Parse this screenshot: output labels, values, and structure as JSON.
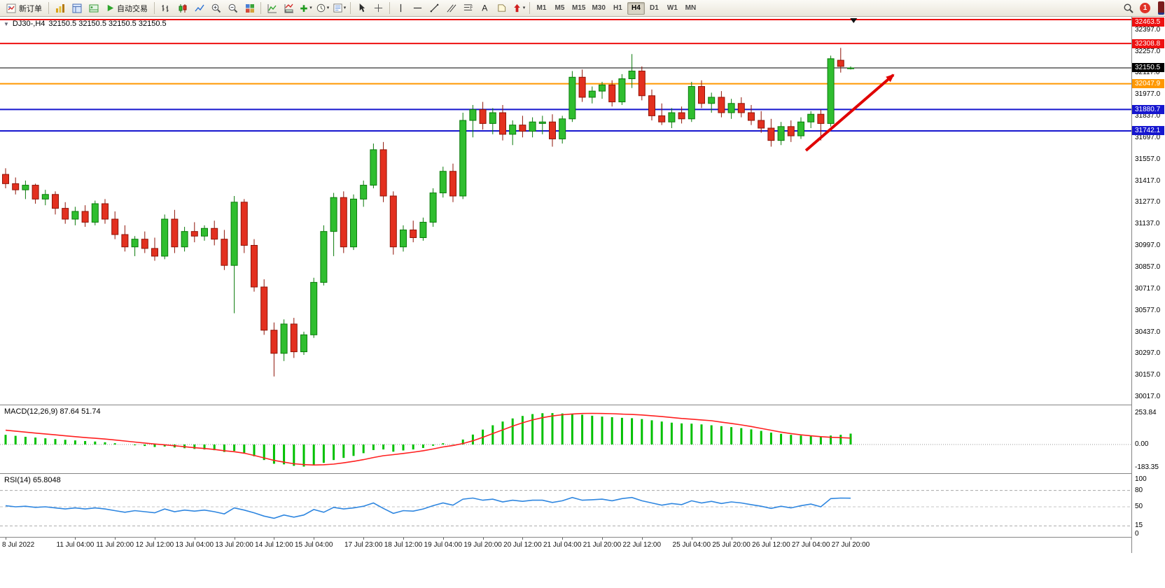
{
  "toolbar": {
    "new_order_label": "新订单",
    "autotrade_label": "自动交易",
    "timeframes": [
      "M1",
      "M5",
      "M15",
      "M30",
      "H1",
      "H4",
      "D1",
      "W1",
      "MN"
    ],
    "active_timeframe": "H4",
    "notification_count": "1"
  },
  "icons": {
    "new_order": "order-ticket",
    "market_watch": "gold-bars",
    "navigator": "window-panel",
    "terminal": "panel-green",
    "autotrade": "play-triangle",
    "chart_bars": "ohlc-bars",
    "chart_candles": "candlesticks",
    "chart_line": "zigzag-line",
    "zoom_in": "magnifier-plus",
    "zoom_out": "magnifier-minus",
    "tile_windows": "colored-grid",
    "indicators": "chart-curve",
    "indicator_windows": "chart-subpanel",
    "add_indicator": "green-plus",
    "periods": "clock",
    "templates": "document-lines",
    "cursor": "pointer-arrow",
    "crosshair": "cross",
    "vertical_line": "vline",
    "horizontal_line": "hline",
    "trendline": "diagonal",
    "channel": "parallel-diagonals",
    "fibonacci": "fibo-lines",
    "text": "letter-A",
    "label": "tag",
    "arrows": "red-arrow",
    "search": "magnifier",
    "chart_menu": "down-triangle",
    "series_end": "black-down-triangle"
  },
  "chart_data": {
    "type": "candlestick",
    "symbol_period": "DJ30-,H4",
    "ohlc_display": "32150.5 32150.5 32150.5 32150.5",
    "style": {
      "bull_fill": "#2fbe2f",
      "bull_stroke": "#0b7a0b",
      "bear_fill": "#e3301f",
      "bear_stroke": "#8f1408"
    },
    "price_axis": {
      "max": 32463.5,
      "min": 30013.0,
      "plain_ticks": [
        32397.0,
        32257.0,
        32117.0,
        31977.0,
        31837.0,
        31697.0,
        31557.0,
        31417.0,
        31277.0,
        31137.0,
        30997.0,
        30857.0,
        30717.0,
        30577.0,
        30437.0,
        30297.0,
        30157.0,
        30017.0
      ],
      "tagged": [
        {
          "price": 32463.5,
          "color": "#ee1111"
        },
        {
          "price": 32308.8,
          "color": "#ee1111"
        },
        {
          "price": 32150.5,
          "color": "#000000"
        },
        {
          "price": 32047.9,
          "color": "#ff9800"
        },
        {
          "price": 31880.7,
          "color": "#1616cf"
        },
        {
          "price": 31742.1,
          "color": "#1616cf"
        }
      ]
    },
    "hlines": [
      {
        "price": 32463.5,
        "color": "#ee1111",
        "width": 2
      },
      {
        "price": 32308.8,
        "color": "#ee1111",
        "width": 2
      },
      {
        "price": 32150.5,
        "color": "#000000",
        "width": 1
      },
      {
        "price": 32047.9,
        "color": "#ff9800",
        "width": 2
      },
      {
        "price": 31880.7,
        "color": "#1616cf",
        "width": 2
      },
      {
        "price": 31742.1,
        "color": "#1616cf",
        "width": 2
      }
    ],
    "candles": [
      [
        31460,
        31500,
        31370,
        31400
      ],
      [
        31400,
        31440,
        31330,
        31360
      ],
      [
        31360,
        31420,
        31300,
        31390
      ],
      [
        31390,
        31400,
        31270,
        31300
      ],
      [
        31300,
        31360,
        31260,
        31330
      ],
      [
        31330,
        31350,
        31200,
        31240
      ],
      [
        31240,
        31280,
        31140,
        31170
      ],
      [
        31170,
        31250,
        31130,
        31220
      ],
      [
        31220,
        31260,
        31120,
        31150
      ],
      [
        31150,
        31290,
        31130,
        31270
      ],
      [
        31270,
        31300,
        31140,
        31170
      ],
      [
        31170,
        31220,
        31040,
        31070
      ],
      [
        31070,
        31130,
        30960,
        30990
      ],
      [
        30990,
        31060,
        30930,
        31040
      ],
      [
        31040,
        31090,
        30950,
        30980
      ],
      [
        30980,
        31050,
        30900,
        30930
      ],
      [
        30930,
        31200,
        30910,
        31170
      ],
      [
        31170,
        31230,
        30950,
        30990
      ],
      [
        30990,
        31120,
        30960,
        31090
      ],
      [
        31090,
        31150,
        31020,
        31060
      ],
      [
        31060,
        31130,
        31030,
        31110
      ],
      [
        31110,
        31160,
        31000,
        31040
      ],
      [
        31040,
        31100,
        30840,
        30870
      ],
      [
        30870,
        31320,
        30560,
        31280
      ],
      [
        31280,
        31300,
        30950,
        31000
      ],
      [
        31000,
        31040,
        30700,
        30730
      ],
      [
        30730,
        30780,
        30420,
        30450
      ],
      [
        30450,
        30500,
        30150,
        30300
      ],
      [
        30300,
        30520,
        30250,
        30490
      ],
      [
        30490,
        30530,
        30270,
        30310
      ],
      [
        30310,
        30440,
        30290,
        30420
      ],
      [
        30420,
        30790,
        30400,
        30760
      ],
      [
        30760,
        31130,
        30740,
        31090
      ],
      [
        31090,
        31340,
        30930,
        31310
      ],
      [
        31310,
        31350,
        30950,
        30990
      ],
      [
        30990,
        31330,
        30970,
        31300
      ],
      [
        31300,
        31420,
        31250,
        31390
      ],
      [
        31390,
        31660,
        31370,
        31620
      ],
      [
        31620,
        31670,
        31280,
        31320
      ],
      [
        31320,
        31350,
        30940,
        30990
      ],
      [
        30990,
        31130,
        30960,
        31100
      ],
      [
        31100,
        31160,
        31020,
        31050
      ],
      [
        31050,
        31180,
        31030,
        31150
      ],
      [
        31150,
        31370,
        31120,
        31340
      ],
      [
        31340,
        31510,
        31310,
        31480
      ],
      [
        31480,
        31530,
        31280,
        31320
      ],
      [
        31320,
        31860,
        31300,
        31810
      ],
      [
        31810,
        31910,
        31700,
        31880
      ],
      [
        31880,
        31930,
        31750,
        31790
      ],
      [
        31790,
        31890,
        31720,
        31860
      ],
      [
        31860,
        31910,
        31680,
        31720
      ],
      [
        31720,
        31810,
        31650,
        31780
      ],
      [
        31780,
        31840,
        31700,
        31740
      ],
      [
        31740,
        31830,
        31700,
        31800
      ],
      [
        31790,
        31840,
        31720,
        31800
      ],
      [
        31800,
        31850,
        31640,
        31690
      ],
      [
        31690,
        31840,
        31660,
        31820
      ],
      [
        31820,
        32130,
        31800,
        32090
      ],
      [
        32090,
        32140,
        31930,
        31960
      ],
      [
        31960,
        32030,
        31920,
        32000
      ],
      [
        32000,
        32060,
        31950,
        32040
      ],
      [
        32040,
        32070,
        31900,
        31930
      ],
      [
        31930,
        32110,
        31910,
        32080
      ],
      [
        32080,
        32240,
        32020,
        32130
      ],
      [
        32130,
        32160,
        31940,
        31970
      ],
      [
        31970,
        32010,
        31810,
        31840
      ],
      [
        31840,
        31920,
        31780,
        31800
      ],
      [
        31800,
        31890,
        31760,
        31860
      ],
      [
        31860,
        31900,
        31790,
        31820
      ],
      [
        31820,
        32060,
        31800,
        32030
      ],
      [
        32030,
        32070,
        31890,
        31920
      ],
      [
        31920,
        31990,
        31860,
        31960
      ],
      [
        31960,
        32000,
        31830,
        31860
      ],
      [
        31860,
        31950,
        31820,
        31920
      ],
      [
        31920,
        31960,
        31830,
        31860
      ],
      [
        31860,
        31910,
        31780,
        31810
      ],
      [
        31810,
        31870,
        31730,
        31760
      ],
      [
        31760,
        31820,
        31640,
        31680
      ],
      [
        31680,
        31800,
        31650,
        31770
      ],
      [
        31770,
        31810,
        31670,
        31710
      ],
      [
        31710,
        31830,
        31690,
        31800
      ],
      [
        31800,
        31870,
        31760,
        31850
      ],
      [
        31850,
        31880,
        31680,
        31790
      ],
      [
        31790,
        32230,
        31770,
        32210
      ],
      [
        32200,
        32280,
        32120,
        32160
      ],
      [
        32150.5,
        32160,
        32140,
        32150.5
      ]
    ],
    "indicators": {
      "macd": {
        "label": "MACD(12,26,9)",
        "values_text": "87.64 51.74",
        "scale_max": 253.84,
        "scale_min": -183.35,
        "scale_labels": [
          "253.84",
          "0.00",
          "-183.35"
        ],
        "histogram_color": "#00c000",
        "signal_color": "#ff2020",
        "histogram": [
          78,
          70,
          62,
          56,
          50,
          44,
          38,
          33,
          28,
          24,
          18,
          10,
          0,
          -6,
          -12,
          -20,
          -16,
          -24,
          -30,
          -36,
          -40,
          -46,
          -60,
          -52,
          -68,
          -95,
          -125,
          -155,
          -160,
          -172,
          -178,
          -165,
          -148,
          -125,
          -108,
          -92,
          -70,
          -45,
          -40,
          -58,
          -48,
          -40,
          -28,
          -10,
          10,
          2,
          40,
          80,
          120,
          155,
          185,
          210,
          230,
          245,
          252,
          253,
          250,
          246,
          240,
          232,
          225,
          220,
          215,
          212,
          205,
          195,
          185,
          176,
          170,
          168,
          162,
          155,
          148,
          140,
          132,
          122,
          110,
          96,
          86,
          78,
          72,
          68,
          64,
          72,
          78,
          87.64
        ],
        "signal": [
          115,
          108,
          100,
          92,
          85,
          78,
          70,
          63,
          56,
          50,
          44,
          36,
          28,
          20,
          12,
          4,
          -2,
          -10,
          -18,
          -26,
          -32,
          -40,
          -50,
          -58,
          -70,
          -88,
          -108,
          -128,
          -142,
          -155,
          -162,
          -165,
          -163,
          -158,
          -148,
          -136,
          -122,
          -105,
          -90,
          -82,
          -72,
          -62,
          -50,
          -36,
          -20,
          -8,
          8,
          30,
          58,
          88,
          118,
          148,
          175,
          198,
          216,
          230,
          240,
          246,
          250,
          251,
          250,
          248,
          245,
          242,
          238,
          232,
          225,
          218,
          210,
          204,
          198,
          192,
          180,
          170,
          158,
          145,
          130,
          115,
          100,
          88,
          78,
          70,
          63,
          58,
          55,
          51.74
        ]
      },
      "rsi": {
        "label": "RSI(14)",
        "value_text": "65.8048",
        "line_color": "#2e86e0",
        "levels": [
          80,
          50,
          15
        ],
        "scale_labels": [
          {
            "text": "100",
            "value": 100
          },
          {
            "text": "80",
            "value": 80
          },
          {
            "text": "50",
            "value": 50
          },
          {
            "text": "15",
            "value": 15
          },
          {
            "text": "0",
            "value": 0
          }
        ],
        "values": [
          52,
          50,
          51,
          49,
          50,
          48,
          46,
          48,
          46,
          48,
          46,
          43,
          40,
          43,
          41,
          39,
          46,
          41,
          44,
          42,
          44,
          41,
          37,
          48,
          44,
          39,
          33,
          29,
          35,
          31,
          35,
          45,
          40,
          49,
          46,
          48,
          51,
          57,
          47,
          38,
          43,
          42,
          46,
          52,
          57,
          53,
          64,
          66,
          62,
          64,
          59,
          62,
          60,
          62,
          62,
          58,
          61,
          67,
          62,
          63,
          64,
          61,
          65,
          67,
          61,
          57,
          53,
          56,
          54,
          61,
          57,
          60,
          56,
          59,
          57,
          54,
          51,
          47,
          51,
          48,
          52,
          55,
          50,
          65,
          66,
          65.8
        ]
      }
    },
    "time_labels": [
      {
        "text": "8 Jul 2022",
        "i": 0
      },
      {
        "text": "11 Jul 04:00",
        "i": 7
      },
      {
        "text": "11 Jul 20:00",
        "i": 11
      },
      {
        "text": "12 Jul 12:00",
        "i": 15
      },
      {
        "text": "13 Jul 04:00",
        "i": 19
      },
      {
        "text": "13 Jul 20:00",
        "i": 23
      },
      {
        "text": "14 Jul 12:00",
        "i": 27
      },
      {
        "text": "15 Jul 04:00",
        "i": 31
      },
      {
        "text": "17 Jul 23:00",
        "i": 36
      },
      {
        "text": "18 Jul 12:00",
        "i": 40
      },
      {
        "text": "19 Jul 04:00",
        "i": 44
      },
      {
        "text": "19 Jul 20:00",
        "i": 48
      },
      {
        "text": "20 Jul 12:00",
        "i": 52
      },
      {
        "text": "21 Jul 04:00",
        "i": 56
      },
      {
        "text": "21 Jul 20:00",
        "i": 60
      },
      {
        "text": "22 Jul 12:00",
        "i": 64
      },
      {
        "text": "25 Jul 04:00",
        "i": 69
      },
      {
        "text": "25 Jul 20:00",
        "i": 73
      },
      {
        "text": "26 Jul 12:00",
        "i": 77
      },
      {
        "text": "27 Jul 04:00",
        "i": 81
      },
      {
        "text": "27 Jul 20:00",
        "i": 85
      }
    ],
    "annotation_arrow": {
      "from": {
        "i": 80.5,
        "price": 31615
      },
      "to": {
        "i": 89.3,
        "price": 32105
      },
      "color": "#e00000"
    },
    "series_end_marker": {
      "i": 85.3
    }
  }
}
